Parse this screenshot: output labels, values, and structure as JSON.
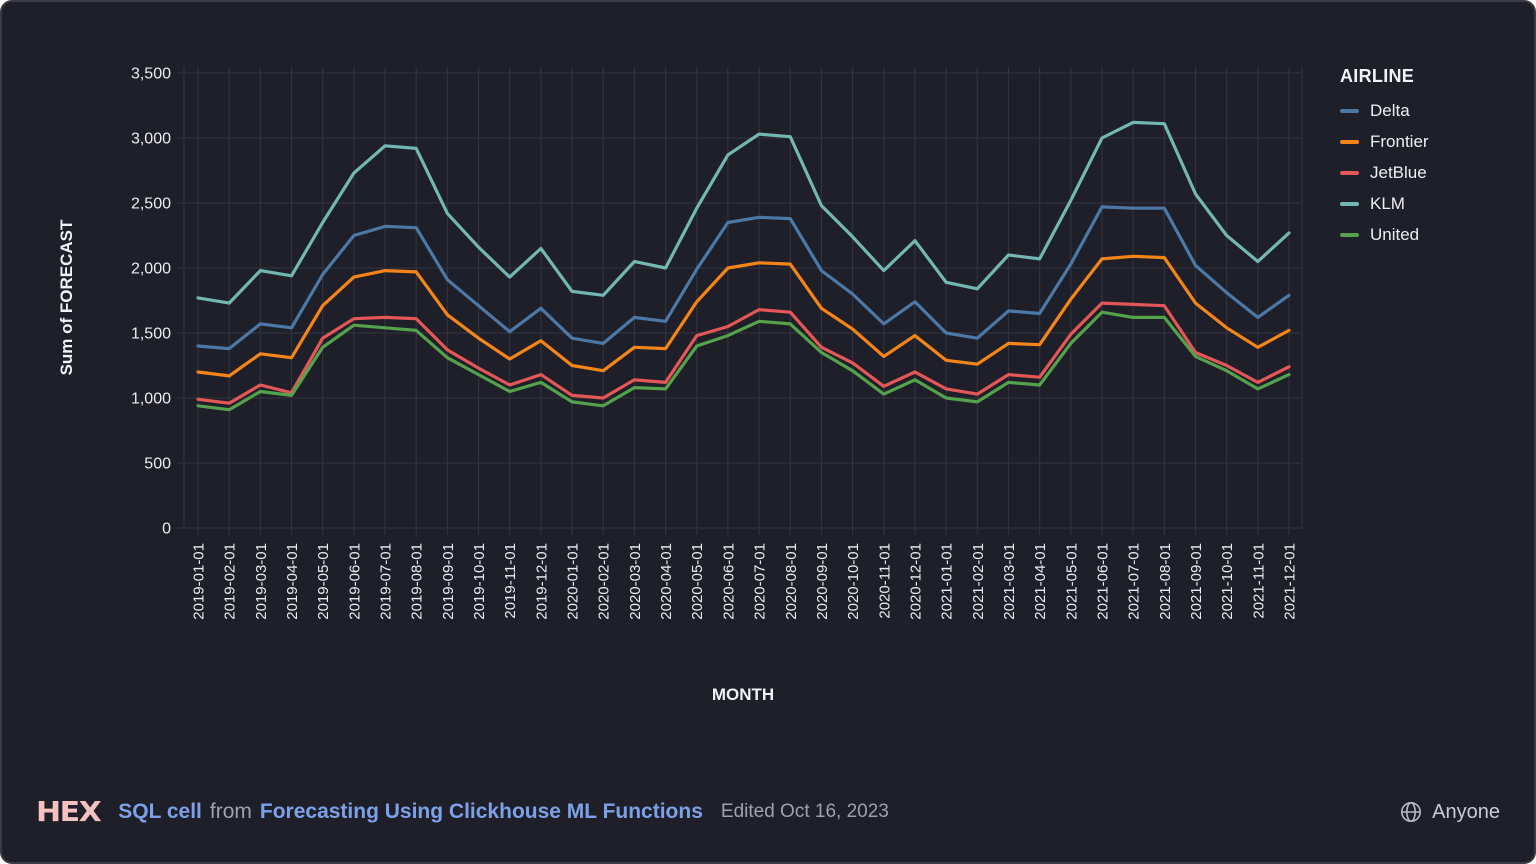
{
  "chart_data": {
    "type": "line",
    "xlabel": "MONTH",
    "ylabel": "Sum of FORECAST",
    "legend_title": "AIRLINE",
    "legend_position": "right",
    "grid": true,
    "ylim": [
      0,
      3500
    ],
    "ytick_step": 500,
    "ytick_labels": [
      "0",
      "500",
      "1,000",
      "1,500",
      "2,000",
      "2,500",
      "3,000",
      "3,500"
    ],
    "x": [
      "2019-01-01",
      "2019-02-01",
      "2019-03-01",
      "2019-04-01",
      "2019-05-01",
      "2019-06-01",
      "2019-07-01",
      "2019-08-01",
      "2019-09-01",
      "2019-10-01",
      "2019-11-01",
      "2019-12-01",
      "2020-01-01",
      "2020-02-01",
      "2020-03-01",
      "2020-04-01",
      "2020-05-01",
      "2020-06-01",
      "2020-07-01",
      "2020-08-01",
      "2020-09-01",
      "2020-10-01",
      "2020-11-01",
      "2020-12-01",
      "2021-01-01",
      "2021-02-01",
      "2021-03-01",
      "2021-04-01",
      "2021-05-01",
      "2021-06-01",
      "2021-07-01",
      "2021-08-01",
      "2021-09-01",
      "2021-10-01",
      "2021-11-01",
      "2021-12-01"
    ],
    "series": [
      {
        "name": "Delta",
        "color": "#4C78A8",
        "values": [
          1400,
          1380,
          1570,
          1540,
          1950,
          2250,
          2320,
          2310,
          1910,
          1710,
          1510,
          1690,
          1460,
          1420,
          1620,
          1590,
          1990,
          2350,
          2390,
          2380,
          1980,
          1800,
          1570,
          1740,
          1500,
          1460,
          1670,
          1650,
          2030,
          2470,
          2460,
          2460,
          2020,
          1810,
          1620,
          1790
        ]
      },
      {
        "name": "Frontier",
        "color": "#F58518",
        "values": [
          1200,
          1170,
          1340,
          1310,
          1710,
          1930,
          1980,
          1970,
          1640,
          1460,
          1300,
          1440,
          1250,
          1210,
          1390,
          1380,
          1740,
          2000,
          2040,
          2030,
          1690,
          1530,
          1320,
          1480,
          1290,
          1260,
          1420,
          1410,
          1760,
          2070,
          2090,
          2080,
          1730,
          1540,
          1390,
          1520
        ]
      },
      {
        "name": "JetBlue",
        "color": "#E45756",
        "values": [
          990,
          960,
          1100,
          1040,
          1460,
          1610,
          1620,
          1610,
          1370,
          1230,
          1100,
          1180,
          1020,
          1000,
          1140,
          1120,
          1480,
          1550,
          1680,
          1660,
          1390,
          1270,
          1090,
          1200,
          1070,
          1030,
          1180,
          1160,
          1490,
          1730,
          1720,
          1710,
          1350,
          1250,
          1120,
          1240
        ]
      },
      {
        "name": "KLM",
        "color": "#72B7B2",
        "values": [
          1770,
          1730,
          1980,
          1940,
          2350,
          2730,
          2940,
          2920,
          2420,
          2160,
          1930,
          2150,
          1820,
          1790,
          2050,
          2000,
          2460,
          2870,
          3030,
          3010,
          2480,
          2240,
          1980,
          2210,
          1890,
          1840,
          2100,
          2070,
          2520,
          3000,
          3120,
          3110,
          2570,
          2250,
          2050,
          2270
        ]
      },
      {
        "name": "United",
        "color": "#54A24B",
        "values": [
          940,
          910,
          1050,
          1020,
          1390,
          1560,
          1540,
          1520,
          1310,
          1180,
          1050,
          1120,
          970,
          940,
          1080,
          1070,
          1400,
          1480,
          1590,
          1570,
          1350,
          1210,
          1030,
          1140,
          1000,
          970,
          1120,
          1100,
          1420,
          1660,
          1620,
          1620,
          1320,
          1210,
          1070,
          1180
        ]
      }
    ]
  },
  "footer": {
    "logo_text": "HEX",
    "cell_type": "SQL cell",
    "from_text": "from",
    "project_title": "Forecasting Using Clickhouse ML Functions",
    "edited": "Edited Oct 16, 2023",
    "visibility": "Anyone"
  },
  "colors": {
    "background": "#1E1F28",
    "border": "#3A3B47",
    "gridline": "#31323E",
    "tick_text": "#ECEDF2",
    "axis_title_text": "#F1F2F6",
    "link_blue": "#7DA1E8",
    "muted_text": "#9EA2B0",
    "logo_pink": "#F3C1BF"
  }
}
